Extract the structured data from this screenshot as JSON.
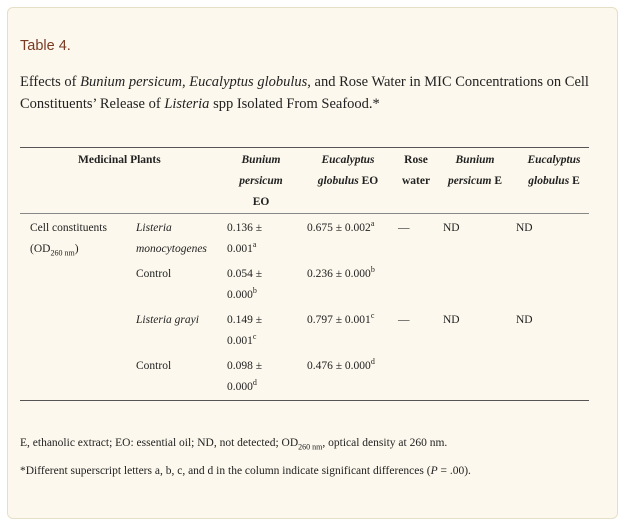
{
  "table_label": "Table 4.",
  "caption": {
    "p1": "Effects of ",
    "i1": "Bunium persicum",
    "p2": ", ",
    "i2": "Eucalyptus globulus",
    "p3": ", and Rose Water in MIC Concentrations on Cell Constituents’ Release of ",
    "i3": "Listeria",
    "p4": " spp Isolated From Seafood.*"
  },
  "headers": {
    "medicinal_plants": "Medicinal Plants",
    "bunium_eo_line1": "Bunium",
    "bunium_eo_line2": "persicum",
    "bunium_eo_line3": "EO",
    "eucalyptus_eo_line1": "Eucalyptus",
    "eucalyptus_eo_line2_it": "globulus",
    "eucalyptus_eo_line2_rest": " EO",
    "rose_line1": "Rose",
    "rose_line2": "water",
    "bunium_e_line1": "Bunium",
    "bunium_e_line2_it": "persicum",
    "bunium_e_line2_rest": " E",
    "eucalyptus_e_line1": "Eucalyptus",
    "eucalyptus_e_line2_it": "globulus",
    "eucalyptus_e_line2_rest": " E"
  },
  "row_group": {
    "line1": "Cell constituents",
    "line2_pre": "(OD",
    "line2_sub": "260 nm",
    "line2_post": ")"
  },
  "rows": [
    {
      "organism_line1": "Listeria",
      "organism_line2": "monocytogenes",
      "bunium_eo_line1": "0.136 ±",
      "bunium_eo_line2": "0.001",
      "bunium_eo_sup": "a",
      "eucalyptus_eo": "0.675 ± 0.002",
      "eucalyptus_eo_sup": "a",
      "rose_water": "—",
      "bunium_e": "ND",
      "eucalyptus_e": "ND"
    },
    {
      "organism_line1": "Control",
      "bunium_eo_line1": "0.054 ±",
      "bunium_eo_line2": "0.000",
      "bunium_eo_sup": "b",
      "eucalyptus_eo": "0.236 ± 0.000",
      "eucalyptus_eo_sup": "b"
    },
    {
      "organism_line1": "Listeria grayi",
      "bunium_eo_line1": "0.149 ±",
      "bunium_eo_line2": "0.001",
      "bunium_eo_sup": "c",
      "eucalyptus_eo": "0.797 ± 0.001",
      "eucalyptus_eo_sup": "c",
      "rose_water": "—",
      "bunium_e": "ND",
      "eucalyptus_e": "ND"
    },
    {
      "organism_line1": "Control",
      "bunium_eo_line1": "0.098 ±",
      "bunium_eo_line2": "0.000",
      "bunium_eo_sup": "d",
      "eucalyptus_eo": "0.476 ± 0.000",
      "eucalyptus_eo_sup": "d"
    }
  ],
  "footnotes": {
    "f1_pre": "E, ethanolic extract; EO: essential oil; ND, not detected; OD",
    "f1_sub": "260 nm",
    "f1_post": ", optical density at 260 nm.",
    "f2_pre": "*Different superscript letters a, b, c, and d in the column indicate significant differences (",
    "f2_it": "P",
    "f2_post": " = .00)."
  },
  "colors": {
    "card_bg": "#fcf8ed",
    "label": "#7a3a22"
  }
}
